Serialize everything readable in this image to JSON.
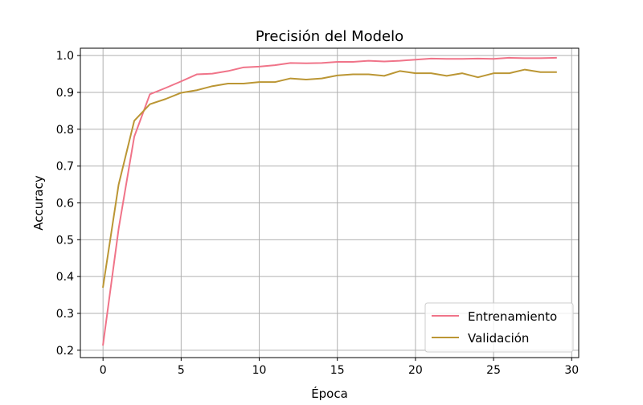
{
  "chart_data": {
    "type": "line",
    "title": "Precisión del Modelo",
    "xlabel": "Época",
    "ylabel": "Accuracy",
    "xlim": [
      -1.45,
      30.45
    ],
    "ylim": [
      0.18,
      1.02
    ],
    "xticks": [
      0,
      5,
      10,
      15,
      20,
      25,
      30
    ],
    "yticks": [
      0.2,
      0.3,
      0.4,
      0.5,
      0.6,
      0.7,
      0.8,
      0.9,
      1.0
    ],
    "grid": true,
    "legend_position": "bottom-right",
    "x": [
      0,
      1,
      2,
      3,
      4,
      5,
      6,
      7,
      8,
      9,
      10,
      11,
      12,
      13,
      14,
      15,
      16,
      17,
      18,
      19,
      20,
      21,
      22,
      23,
      24,
      25,
      26,
      27,
      28,
      29
    ],
    "series": [
      {
        "name": "Entrenamiento",
        "color": "#f07489",
        "values": [
          0.215,
          0.53,
          0.78,
          0.895,
          0.912,
          0.93,
          0.949,
          0.951,
          0.958,
          0.968,
          0.97,
          0.974,
          0.98,
          0.979,
          0.98,
          0.983,
          0.983,
          0.986,
          0.984,
          0.986,
          0.989,
          0.992,
          0.991,
          0.991,
          0.992,
          0.991,
          0.994,
          0.993,
          0.993,
          0.994
        ]
      },
      {
        "name": "Validación",
        "color": "#bb9634",
        "values": [
          0.372,
          0.65,
          0.823,
          0.868,
          0.882,
          0.899,
          0.906,
          0.917,
          0.924,
          0.924,
          0.928,
          0.928,
          0.938,
          0.935,
          0.938,
          0.946,
          0.949,
          0.949,
          0.945,
          0.958,
          0.952,
          0.952,
          0.945,
          0.952,
          0.941,
          0.952,
          0.952,
          0.962,
          0.955,
          0.955
        ]
      }
    ]
  }
}
